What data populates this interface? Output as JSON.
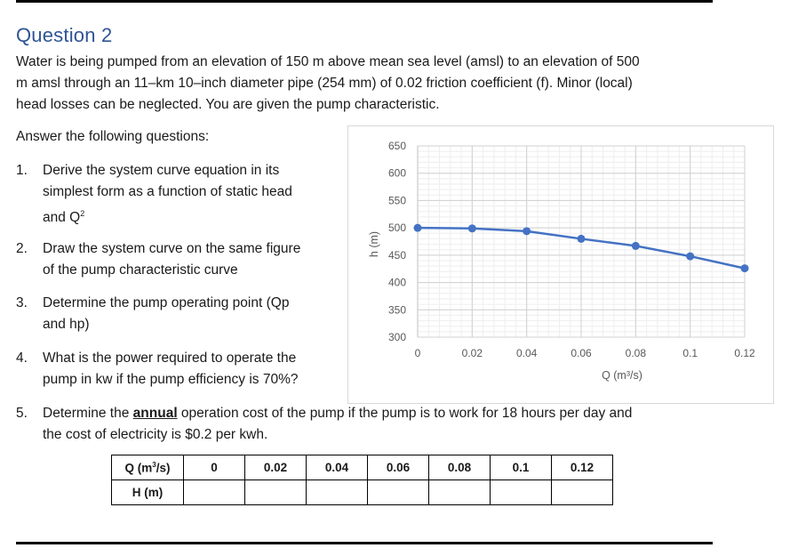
{
  "question": {
    "title": "Question 2",
    "intro_lines": [
      "Water is being pumped from an elevation of 150 m above mean sea level (amsl) to an elevation of 500",
      "m amsl through an 11–km 10–inch diameter pipe (254 mm) of 0.02 friction coefficient (f). Minor (local)",
      "head losses can be neglected. You are given the pump characteristic."
    ],
    "answer_lead": "Answer the following questions:",
    "items": [
      {
        "num": "1.",
        "lines": [
          "Derive the system curve equation in its",
          "simplest form as a function of static head",
          "and Q"
        ],
        "sup": "2"
      },
      {
        "num": "2.",
        "lines": [
          "Draw the system curve on the same figure",
          "of the pump characteristic curve"
        ]
      },
      {
        "num": "3.",
        "lines": [
          "Determine the pump operating point (Qp",
          "and hp)"
        ]
      },
      {
        "num": "4.",
        "lines": [
          "What is the power required to operate the",
          "pump in kw if the pump efficiency is 70%?"
        ]
      },
      {
        "num": "5.",
        "pre": "Determine the ",
        "emph": "annual",
        "post": " operation cost of the pump if the pump is to work for 18 hours per day and",
        "line2": "the cost of electricity is $0.2 per kwh."
      }
    ]
  },
  "chart_data": {
    "type": "line",
    "x": [
      0,
      0.02,
      0.04,
      0.06,
      0.08,
      0.1,
      0.12
    ],
    "series": [
      {
        "values": [
          500,
          499,
          494,
          480,
          467,
          448,
          426
        ]
      }
    ],
    "xlabel": "Q (m³/s)",
    "ylabel": "h (m)",
    "xlim": [
      0,
      0.12
    ],
    "ylim": [
      300,
      650
    ],
    "x_ticks": [
      "0",
      "0.02",
      "0.04",
      "0.06",
      "0.08",
      "0.1",
      "0.12"
    ],
    "y_ticks": [
      "300",
      "350",
      "400",
      "450",
      "500",
      "550",
      "600",
      "650"
    ],
    "grid": true,
    "color": "#4472c4"
  },
  "table": {
    "header_q": "Q (m",
    "header_q_sup": "3",
    "header_q_close": "/s)",
    "header_h": "H (m)",
    "q_values": [
      "0",
      "0.02",
      "0.04",
      "0.06",
      "0.08",
      "0.1",
      "0.12"
    ]
  }
}
